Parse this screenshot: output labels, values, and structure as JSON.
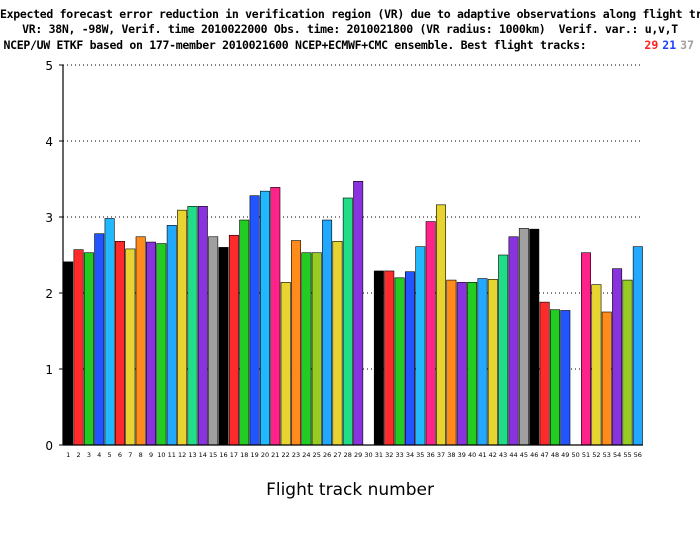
{
  "header": {
    "line1": "Expected forecast error reduction in verification region (VR) due to adaptive observations along flight tracks.",
    "line2": "VR: 38N, -98W, Verif. time 2010022000 Obs. time: 2010021800 (VR radius: 1000km)  Verif. var.: u,v,T",
    "line3": "NCEP/UW ETKF based on 177-member 2010021600 NCEP+ECMWF+CMC ensemble. Best flight tracks:",
    "best_tracks": [
      {
        "value": "29",
        "color": "#ff2020"
      },
      {
        "value": "21",
        "color": "#2040ff"
      },
      {
        "value": "37",
        "color": "#a0a0a0"
      }
    ]
  },
  "chart_data": {
    "type": "bar",
    "xlabel": "Flight track number",
    "ylabel": "",
    "ylim": [
      0,
      5
    ],
    "yticks": [
      0,
      1,
      2,
      3,
      4,
      5
    ],
    "grid": "horizontal dotted",
    "categories": [
      "1",
      "2",
      "3",
      "4",
      "5",
      "6",
      "7",
      "8",
      "9",
      "10",
      "11",
      "12",
      "13",
      "14",
      "15",
      "16",
      "17",
      "18",
      "19",
      "20",
      "21",
      "22",
      "23",
      "24",
      "25",
      "26",
      "27",
      "28",
      "29",
      "30",
      "31",
      "32",
      "33",
      "34",
      "35",
      "36",
      "37",
      "38",
      "39",
      "40",
      "41",
      "42",
      "43",
      "44",
      "45",
      "46",
      "47",
      "48",
      "49",
      "50",
      "51",
      "52",
      "53",
      "54",
      "55",
      "56"
    ],
    "values": [
      2.41,
      2.57,
      2.53,
      2.78,
      2.98,
      2.68,
      2.58,
      2.74,
      2.67,
      2.65,
      2.89,
      3.09,
      3.14,
      3.14,
      2.74,
      2.6,
      2.76,
      2.96,
      3.28,
      3.34,
      3.39,
      2.14,
      2.69,
      2.53,
      2.53,
      2.96,
      2.68,
      3.25,
      3.47,
      null,
      2.29,
      2.29,
      2.2,
      2.28,
      2.61,
      2.94,
      3.16,
      2.17,
      2.14,
      2.14,
      2.19,
      2.18,
      2.5,
      2.74,
      2.85,
      2.84,
      1.88,
      1.78,
      1.77,
      null,
      2.53,
      2.11,
      1.75,
      2.32,
      2.17,
      2.61
    ],
    "bar_colors": [
      "#000000",
      "#ff2a2a",
      "#22cc22",
      "#2255ff",
      "#22b8ff",
      "#ff2a2a",
      "#e8d430",
      "#ff8c1a",
      "#8833dd",
      "#22cc22",
      "#22a8ff",
      "#e8d430",
      "#22dd88",
      "#8833dd",
      "#a0a0a0",
      "#000000",
      "#ff2a2a",
      "#22cc22",
      "#2255ff",
      "#22b8ff",
      "#ff2288",
      "#e8d430",
      "#ff8c1a",
      "#22cc22",
      "#99cc22",
      "#22a8ff",
      "#e8d430",
      "#22dd88",
      "#8833dd",
      "#000000",
      "#000000",
      "#ff2a2a",
      "#22cc22",
      "#2255ff",
      "#22b8ff",
      "#ff2288",
      "#e8d430",
      "#ff8c1a",
      "#8833dd",
      "#22cc22",
      "#22a8ff",
      "#e8d430",
      "#22dd88",
      "#8833dd",
      "#a0a0a0",
      "#000000",
      "#ff2a2a",
      "#22cc22",
      "#2255ff",
      "#000000",
      "#ff2288",
      "#e8d430",
      "#ff8c1a",
      "#8833dd",
      "#99cc22",
      "#22a8ff"
    ]
  }
}
